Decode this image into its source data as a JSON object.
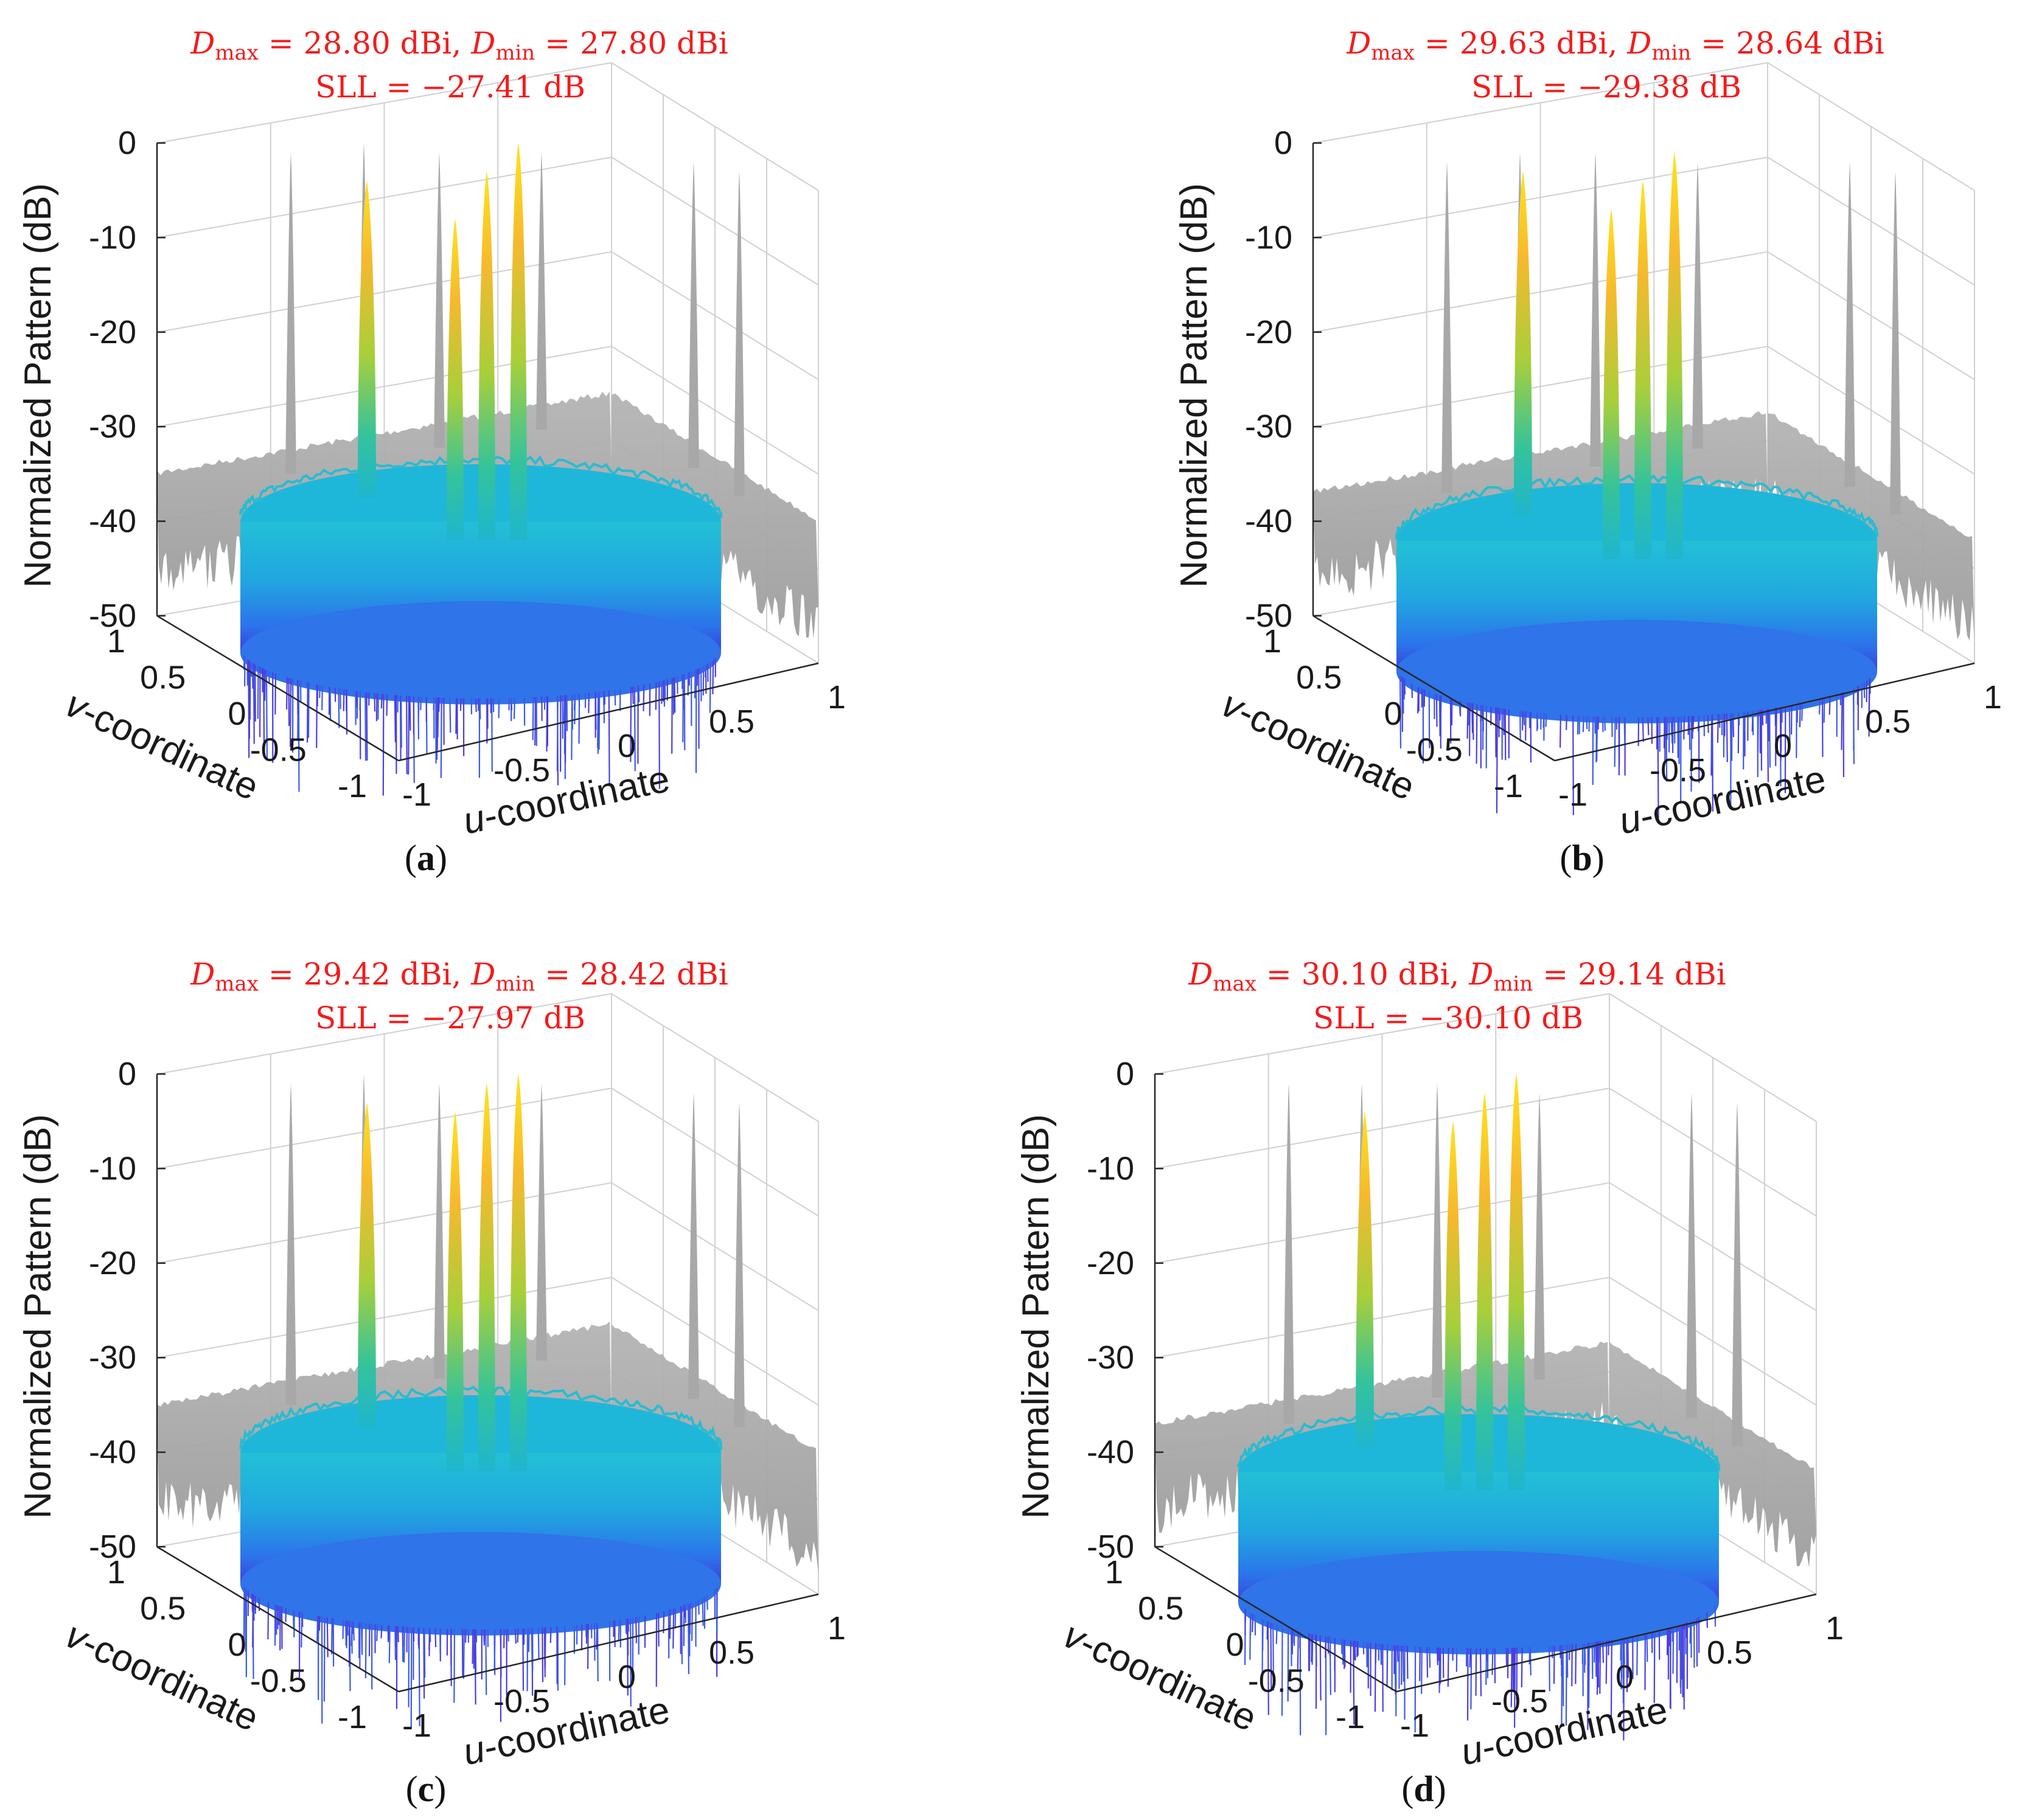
{
  "figure": {
    "colors": {
      "title": "#f21c1c",
      "projection": "#a9a9a9",
      "surface_low": "#3b2bd8",
      "surface_mid": "#1fb2d8",
      "surface_high": "#ffe21c"
    }
  },
  "chart_data": [
    {
      "type": "surface3d",
      "panel": "a",
      "caption": {
        "open": "(",
        "letter": "a",
        "close": ")"
      },
      "title": {
        "dmax": "28.80",
        "dmin": "27.80",
        "sll": "−27.41"
      },
      "zlabel": "Normalized Pattern (dB)",
      "ulabel": {
        "italic": "u",
        "rest": "-coordinate"
      },
      "vlabel": {
        "italic": "v",
        "rest": "-coordinate"
      },
      "zticks": [
        "0",
        "-10",
        "-20",
        "-30",
        "-40",
        "-50"
      ],
      "uticks": [
        "-1",
        "-0.5",
        "0",
        "0.5",
        "1"
      ],
      "vticks": [
        "1",
        "0.5",
        "0",
        "-0.5",
        "-1"
      ],
      "zlim": [
        -50,
        0
      ],
      "ulim": [
        -1,
        1
      ],
      "vlim": [
        -1,
        1
      ],
      "floor_level_db": -33,
      "beams_db": [
        -4,
        -8,
        -3,
        0
      ],
      "projection_peaks_db": [
        -1,
        0,
        -1,
        -1,
        -2,
        -3
      ]
    },
    {
      "type": "surface3d",
      "panel": "b",
      "caption": {
        "open": "(",
        "letter": "b",
        "close": ")"
      },
      "title": {
        "dmax": "29.63",
        "dmin": "28.64",
        "sll": "−29.38"
      },
      "zlabel": "Normalized Pattern (dB)",
      "ulabel": {
        "italic": "u",
        "rest": "-coordinate"
      },
      "vlabel": {
        "italic": "v",
        "rest": "-coordinate"
      },
      "zticks": [
        "0",
        "-10",
        "-20",
        "-30",
        "-40",
        "-50"
      ],
      "uticks": [
        "-1",
        "-0.5",
        "0",
        "0.5",
        "1"
      ],
      "vticks": [
        "1",
        "0.5",
        "0",
        "-0.5",
        "-1"
      ],
      "zlim": [
        -50,
        0
      ],
      "ulim": [
        -1,
        1
      ],
      "vlim": [
        -1,
        1
      ],
      "floor_level_db": -35,
      "beams_db": [
        -3,
        -7,
        -4,
        -1
      ],
      "projection_peaks_db": [
        -2,
        -1,
        -1,
        -2,
        -2,
        -3
      ]
    },
    {
      "type": "surface3d",
      "panel": "c",
      "caption": {
        "open": "(",
        "letter": "c",
        "close": ")"
      },
      "title": {
        "dmax": "29.42",
        "dmin": "28.42",
        "sll": "−27.97"
      },
      "zlabel": "Normalized Pattern (dB)",
      "ulabel": {
        "italic": "u",
        "rest": "-coordinate"
      },
      "vlabel": {
        "italic": "v",
        "rest": "-coordinate"
      },
      "zticks": [
        "0",
        "-10",
        "-20",
        "-30",
        "-40",
        "-50"
      ],
      "uticks": [
        "-1",
        "-0.5",
        "0",
        "0.5",
        "1"
      ],
      "vticks": [
        "1",
        "0.5",
        "0",
        "-0.5",
        "-1"
      ],
      "zlim": [
        -50,
        0
      ],
      "ulim": [
        -1,
        1
      ],
      "vlim": [
        -1,
        1
      ],
      "floor_level_db": -33,
      "beams_db": [
        -3,
        -4,
        -1,
        0
      ],
      "projection_peaks_db": [
        -1,
        0,
        -1,
        -1,
        -2,
        -3
      ]
    },
    {
      "type": "surface3d",
      "panel": "d",
      "caption": {
        "open": "(",
        "letter": "d",
        "close": ")"
      },
      "title": {
        "dmax": "30.10",
        "dmin": "29.14",
        "sll": "−30.10"
      },
      "zlabel": "Normalized Pattern (dB)",
      "ulabel": {
        "italic": "u",
        "rest": "-coordinate"
      },
      "vlabel": {
        "italic": "v",
        "rest": "-coordinate"
      },
      "zticks": [
        "0",
        "-10",
        "-20",
        "-30",
        "-40",
        "-50"
      ],
      "uticks": [
        "-1",
        "-0.5",
        "0",
        "0.5",
        "1"
      ],
      "vticks": [
        "1",
        "0.5",
        "0",
        "-0.5",
        "-1"
      ],
      "zlim": [
        -50,
        0
      ],
      "ulim": [
        -1,
        1
      ],
      "vlim": [
        -1,
        1
      ],
      "floor_level_db": -35,
      "beams_db": [
        -4,
        -5,
        -2,
        0
      ],
      "projection_peaks_db": [
        -1,
        -1,
        -1,
        -2,
        -2,
        -3
      ]
    }
  ]
}
